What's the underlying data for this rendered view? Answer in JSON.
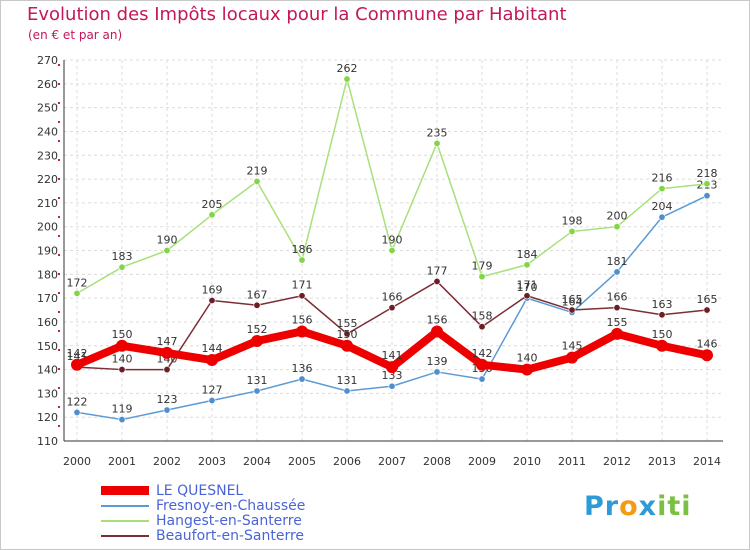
{
  "chart_data": {
    "type": "line",
    "title": "Evolution des Impôts locaux pour la Commune par Habitant",
    "subtitle": "(en € et par an)",
    "xlabel": "",
    "ylabel": "",
    "categories": [
      "2000",
      "2001",
      "2002",
      "2003",
      "2004",
      "2005",
      "2006",
      "2007",
      "2008",
      "2009",
      "2010",
      "2011",
      "2012",
      "2013",
      "2014"
    ],
    "ylim": [
      110,
      270
    ],
    "yticks": [
      110,
      120,
      130,
      140,
      150,
      160,
      170,
      180,
      190,
      200,
      210,
      220,
      230,
      240,
      250,
      260,
      270
    ],
    "grid": true,
    "legend_position": "bottom-left",
    "series": [
      {
        "name": "Fresnoy-en-Chaussée",
        "color": "#5b9bd5",
        "marker": "#4f8fd0",
        "values": [
          122,
          119,
          123,
          127,
          131,
          136,
          131,
          133,
          139,
          136,
          170,
          164,
          181,
          204,
          213
        ]
      },
      {
        "name": "Hangest-en-Santerre",
        "color": "#a8e07a",
        "marker": "#84d448",
        "values": [
          172,
          183,
          190,
          205,
          219,
          186,
          262,
          190,
          235,
          179,
          184,
          198,
          200,
          216,
          218
        ]
      },
      {
        "name": "Beaufort-en-Santerre",
        "color": "#7b2f35",
        "marker": "#6b1f25",
        "values": [
          141,
          140,
          140,
          169,
          167,
          171,
          155,
          166,
          177,
          158,
          171,
          165,
          166,
          163,
          165
        ]
      },
      {
        "name": "LE QUESNEL",
        "color": "#ee0000",
        "marker": "#ee0000",
        "values": [
          142,
          150,
          147,
          144,
          152,
          156,
          150,
          141,
          156,
          142,
          140,
          145,
          155,
          150,
          146
        ]
      }
    ],
    "legend_order": [
      "LE QUESNEL",
      "Fresnoy-en-Chaussée",
      "Hangest-en-Santerre",
      "Beaufort-en-Santerre"
    ]
  },
  "logo": {
    "parts": [
      "Pr",
      "o",
      "x",
      "iti"
    ],
    "colors": [
      "#2f9bd6",
      "#f39c12",
      "#2f9bd6",
      "#7cc043"
    ]
  }
}
